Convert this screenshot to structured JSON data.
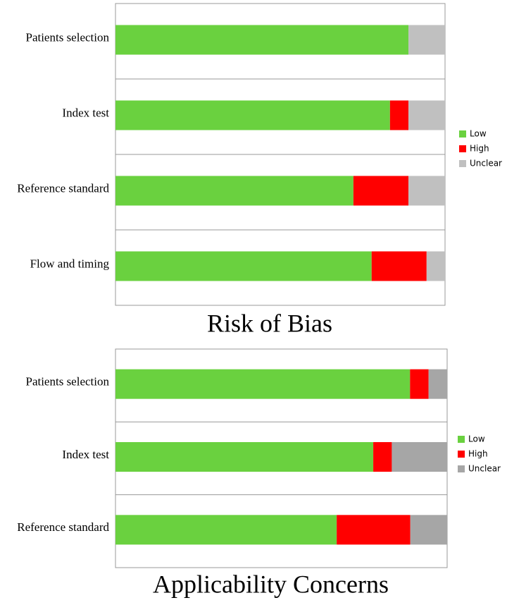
{
  "chart_data": [
    {
      "type": "bar",
      "orientation": "horizontal",
      "stacked": true,
      "title": "Risk of Bias",
      "categories": [
        "Patients selection",
        "Index test",
        "Reference standard",
        "Flow and timing"
      ],
      "series": [
        {
          "name": "Low",
          "color": "#6ad13f",
          "values": [
            88.9,
            83.3,
            72.2,
            77.8
          ]
        },
        {
          "name": "High",
          "color": "#ff0000",
          "values": [
            0,
            5.6,
            16.7,
            16.7
          ]
        },
        {
          "name": "Unclear",
          "color": "#c0c0c0",
          "values": [
            11.1,
            11.1,
            11.1,
            5.6
          ]
        }
      ],
      "legend": "right"
    },
    {
      "type": "bar",
      "orientation": "horizontal",
      "stacked": true,
      "title": "Applicability Concerns",
      "categories": [
        "Patients selection",
        "Index test",
        "Reference standard"
      ],
      "series": [
        {
          "name": "Low",
          "color": "#6ad13f",
          "values": [
            88.9,
            77.8,
            66.7
          ]
        },
        {
          "name": "High",
          "color": "#ff0000",
          "values": [
            5.6,
            5.6,
            22.2
          ]
        },
        {
          "name": "Unclear",
          "color": "#a6a6a6",
          "values": [
            5.6,
            16.7,
            11.1
          ]
        }
      ],
      "legend": "right"
    }
  ]
}
